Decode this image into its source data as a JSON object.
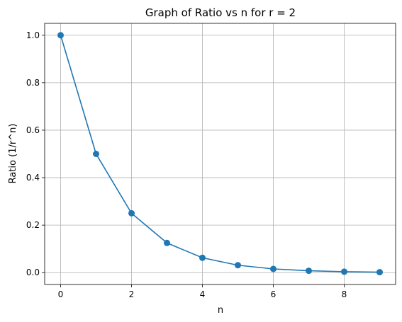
{
  "chart_data": {
    "type": "line",
    "title": "Graph of Ratio vs n for r = 2",
    "xlabel": "n",
    "ylabel": "Ratio (1/r^n)",
    "x": [
      0,
      1,
      2,
      3,
      4,
      5,
      6,
      7,
      8,
      9
    ],
    "series": [
      {
        "values": [
          1.0,
          0.5,
          0.25,
          0.125,
          0.0625,
          0.03125,
          0.015625,
          0.0078125,
          0.00390625,
          0.001953125
        ],
        "color": "#1f77b4",
        "marker": "circle"
      }
    ],
    "xlim": [
      -0.45,
      9.45
    ],
    "ylim": [
      -0.05,
      1.05
    ],
    "xticks": [
      0,
      2,
      4,
      6,
      8
    ],
    "yticks": [
      0.0,
      0.2,
      0.4,
      0.6,
      0.8,
      1.0
    ],
    "xtick_labels": [
      "0",
      "2",
      "4",
      "6",
      "8"
    ],
    "ytick_labels": [
      "0.0",
      "0.2",
      "0.4",
      "0.6",
      "0.8",
      "1.0"
    ],
    "grid": true
  }
}
